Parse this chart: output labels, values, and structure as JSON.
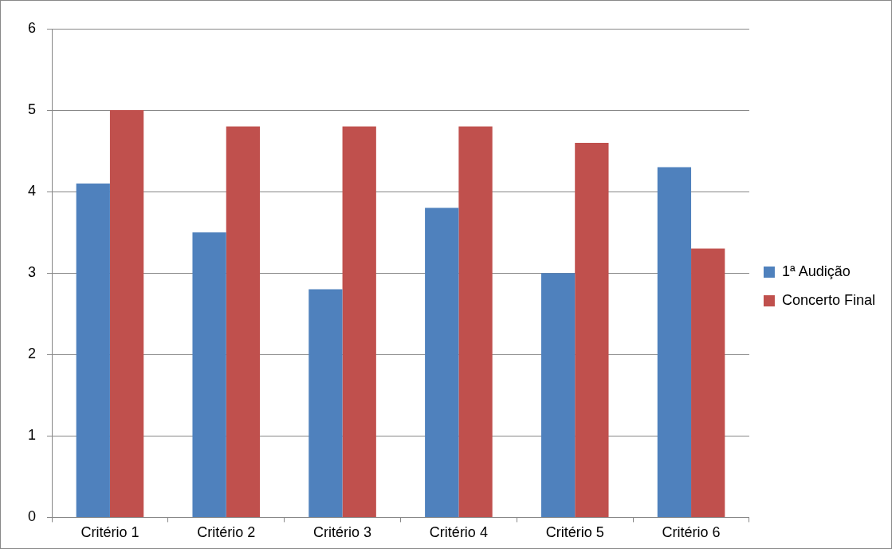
{
  "chart_data": {
    "type": "bar",
    "categories": [
      "Critério 1",
      "Critério 2",
      "Critério 3",
      "Critério 4",
      "Critério 5",
      "Critério 6"
    ],
    "series": [
      {
        "name": "1ª Audição",
        "color": "#4f81bd",
        "values": [
          4.1,
          3.5,
          2.8,
          3.8,
          3.0,
          4.3
        ]
      },
      {
        "name": "Concerto Final",
        "color": "#c0504d",
        "values": [
          5.0,
          4.8,
          4.8,
          4.8,
          4.6,
          3.3
        ]
      }
    ],
    "ylim": [
      0,
      6
    ],
    "yticks": [
      0,
      1,
      2,
      3,
      4,
      5,
      6
    ],
    "grid": "y",
    "legend": "right"
  }
}
